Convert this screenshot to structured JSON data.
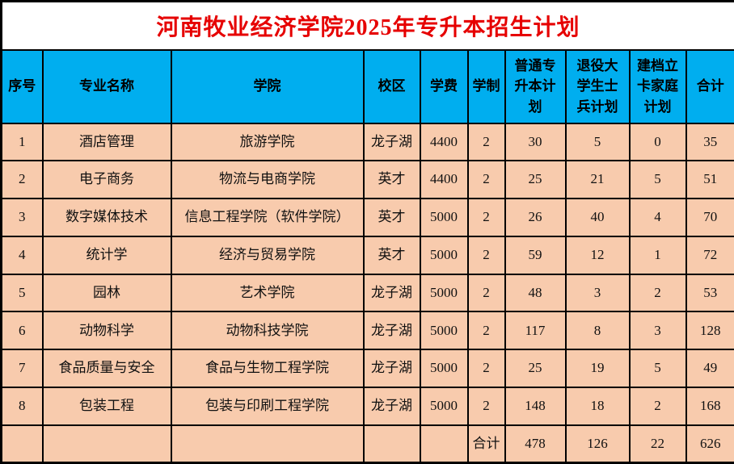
{
  "title": "河南牧业经济学院2025年专升本招生计划",
  "colors": {
    "title_text": "#e60000",
    "header_background": "#00aeef",
    "row_background": "#f8cbad",
    "border": "#000000"
  },
  "table": {
    "headers": [
      "序号",
      "专业名称",
      "学院",
      "校区",
      "学费",
      "学制",
      "普通专升本计划",
      "退役大学生士兵计划",
      "建档立卡家庭计划",
      "合计"
    ],
    "rows": [
      [
        "1",
        "酒店管理",
        "旅游学院",
        "龙子湖",
        "4400",
        "2",
        "30",
        "5",
        "0",
        "35"
      ],
      [
        "2",
        "电子商务",
        "物流与电商学院",
        "英才",
        "4400",
        "2",
        "25",
        "21",
        "5",
        "51"
      ],
      [
        "3",
        "数字媒体技术",
        "信息工程学院（软件学院）",
        "英才",
        "5000",
        "2",
        "26",
        "40",
        "4",
        "70"
      ],
      [
        "4",
        "统计学",
        "经济与贸易学院",
        "英才",
        "5000",
        "2",
        "59",
        "12",
        "1",
        "72"
      ],
      [
        "5",
        "园林",
        "艺术学院",
        "龙子湖",
        "5000",
        "2",
        "48",
        "3",
        "2",
        "53"
      ],
      [
        "6",
        "动物科学",
        "动物科技学院",
        "龙子湖",
        "5000",
        "2",
        "117",
        "8",
        "3",
        "128"
      ],
      [
        "7",
        "食品质量与安全",
        "食品与生物工程学院",
        "龙子湖",
        "5000",
        "2",
        "25",
        "19",
        "5",
        "49"
      ],
      [
        "8",
        "包装工程",
        "包装与印刷工程学院",
        "龙子湖",
        "5000",
        "2",
        "148",
        "18",
        "2",
        "168"
      ]
    ],
    "total_row": [
      "",
      "",
      "",
      "",
      "",
      "合计",
      "478",
      "126",
      "22",
      "626"
    ]
  }
}
